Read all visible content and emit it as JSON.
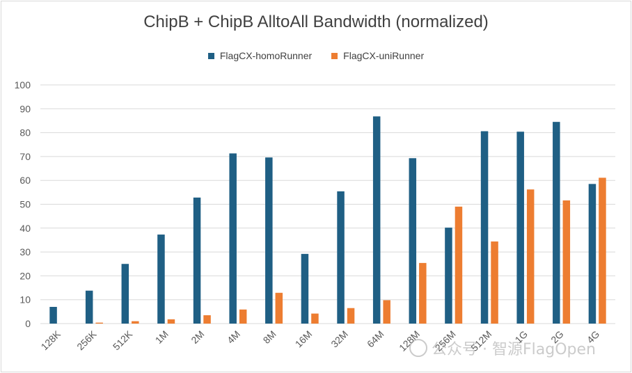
{
  "chart_data": {
    "type": "bar",
    "title": "ChipB + ChipB AlltoAll Bandwidth (normalized)",
    "categories": [
      "128K",
      "256K",
      "512K",
      "1M",
      "2M",
      "4M",
      "8M",
      "16M",
      "32M",
      "64M",
      "128M",
      "256M",
      "512M",
      "1G",
      "2G",
      "4G"
    ],
    "series": [
      {
        "name": "FlagCX-homoRunner",
        "color": "#1f5f84",
        "values": [
          7,
          13.8,
          25,
          37.3,
          52.8,
          71.3,
          69.6,
          29.2,
          55.4,
          86.8,
          69.3,
          40.2,
          80.6,
          80.4,
          84.5,
          58.5
        ]
      },
      {
        "name": "FlagCX-uniRunner",
        "color": "#ed7d31",
        "values": [
          0,
          0.4,
          1,
          1.8,
          3.5,
          5.9,
          12.9,
          4.2,
          6.5,
          9.8,
          25.4,
          49,
          34.4,
          56.2,
          51.6,
          61.1
        ]
      }
    ],
    "xlabel": "",
    "ylabel": "",
    "ylim": [
      0,
      100
    ],
    "yticks": [
      0,
      10,
      20,
      30,
      40,
      50,
      60,
      70,
      80,
      90,
      100
    ],
    "grid": true,
    "legend": "top-center"
  },
  "watermark": {
    "text": "公众号 · 智源FlagOpen"
  }
}
